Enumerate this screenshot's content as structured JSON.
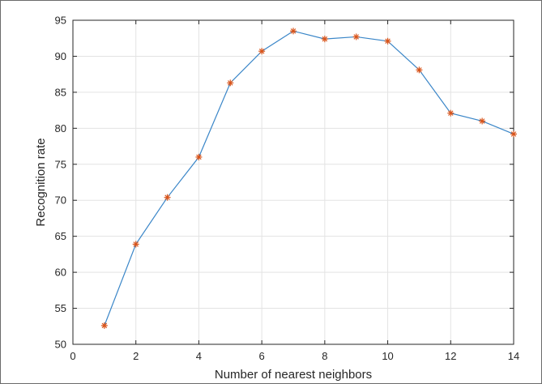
{
  "chart_data": {
    "type": "line",
    "title": "",
    "xlabel": "Number of nearest neighbors",
    "ylabel": "Recognition rate",
    "xlim": [
      0,
      14
    ],
    "ylim": [
      50,
      95
    ],
    "xticks": [
      0,
      2,
      4,
      6,
      8,
      10,
      12,
      14
    ],
    "yticks": [
      50,
      55,
      60,
      65,
      70,
      75,
      80,
      85,
      90,
      95
    ],
    "grid": true,
    "legend": "none",
    "series": [
      {
        "x": [
          1,
          2,
          3,
          4,
          5,
          6,
          7,
          8,
          9,
          10,
          11,
          12,
          13,
          14
        ],
        "y": [
          52.6,
          63.9,
          70.4,
          76.0,
          86.3,
          90.7,
          93.5,
          92.4,
          92.7,
          92.1,
          88.1,
          82.1,
          81.0,
          79.2
        ],
        "line_color": "#3a86c8",
        "marker": "asterisk",
        "marker_color": "#d9541a"
      }
    ]
  }
}
